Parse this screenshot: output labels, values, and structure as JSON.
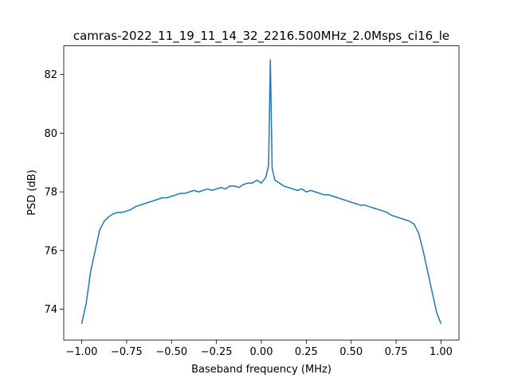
{
  "chart_data": {
    "type": "line",
    "title": "camras-2022_11_19_11_14_32_2216.500MHz_2.0Msps_ci16_le",
    "x_label": "Baseband frequency (MHz)",
    "y_label": "PSD (dB)",
    "x": [
      -1.0,
      -0.975,
      -0.95,
      -0.925,
      -0.9,
      -0.875,
      -0.85,
      -0.825,
      -0.8,
      -0.775,
      -0.75,
      -0.725,
      -0.7,
      -0.675,
      -0.65,
      -0.625,
      -0.6,
      -0.575,
      -0.55,
      -0.525,
      -0.5,
      -0.475,
      -0.45,
      -0.425,
      -0.4,
      -0.375,
      -0.35,
      -0.325,
      -0.3,
      -0.275,
      -0.25,
      -0.225,
      -0.2,
      -0.175,
      -0.15,
      -0.125,
      -0.1,
      -0.075,
      -0.05,
      -0.025,
      0.0,
      0.025,
      0.04,
      0.05,
      0.06,
      0.075,
      0.1,
      0.125,
      0.15,
      0.175,
      0.2,
      0.225,
      0.25,
      0.275,
      0.3,
      0.325,
      0.35,
      0.375,
      0.4,
      0.425,
      0.45,
      0.475,
      0.5,
      0.525,
      0.55,
      0.575,
      0.6,
      0.625,
      0.65,
      0.675,
      0.7,
      0.725,
      0.75,
      0.775,
      0.8,
      0.825,
      0.85,
      0.875,
      0.9,
      0.925,
      0.95,
      0.975,
      1.0
    ],
    "series": [
      {
        "color": "#1f77b4",
        "values": [
          73.5,
          74.2,
          75.3,
          76.0,
          76.7,
          77.0,
          77.15,
          77.25,
          77.3,
          77.3,
          77.35,
          77.4,
          77.5,
          77.55,
          77.6,
          77.65,
          77.7,
          77.75,
          77.8,
          77.8,
          77.85,
          77.9,
          77.95,
          77.95,
          78.0,
          78.05,
          78.0,
          78.05,
          78.1,
          78.05,
          78.1,
          78.15,
          78.1,
          78.2,
          78.2,
          78.15,
          78.25,
          78.3,
          78.3,
          78.4,
          78.3,
          78.5,
          78.9,
          82.5,
          78.8,
          78.4,
          78.3,
          78.2,
          78.15,
          78.1,
          78.05,
          78.1,
          78.0,
          78.05,
          78.0,
          77.95,
          77.9,
          77.9,
          77.85,
          77.8,
          77.75,
          77.7,
          77.65,
          77.6,
          77.55,
          77.55,
          77.5,
          77.45,
          77.4,
          77.35,
          77.3,
          77.2,
          77.15,
          77.1,
          77.05,
          77.0,
          76.9,
          76.6,
          76.0,
          75.3,
          74.6,
          73.9,
          73.5
        ]
      }
    ],
    "xlim": [
      -1.1,
      1.1
    ],
    "ylim": [
      72.95,
      82.98
    ],
    "xticks": [
      {
        "value": -1.0,
        "label": "−1.00"
      },
      {
        "value": -0.75,
        "label": "−0.75"
      },
      {
        "value": -0.5,
        "label": "−0.50"
      },
      {
        "value": -0.25,
        "label": "−0.25"
      },
      {
        "value": 0.0,
        "label": "0.00"
      },
      {
        "value": 0.25,
        "label": "0.25"
      },
      {
        "value": 0.5,
        "label": "0.50"
      },
      {
        "value": 0.75,
        "label": "0.75"
      },
      {
        "value": 1.0,
        "label": "1.00"
      }
    ],
    "yticks": [
      74,
      76,
      78,
      80,
      82
    ]
  }
}
